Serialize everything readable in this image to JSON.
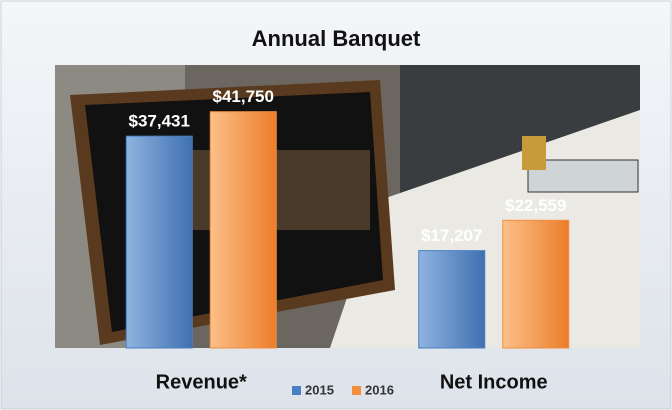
{
  "chart_data": {
    "type": "bar",
    "title": "Annual Banquet",
    "categories": [
      "Revenue*",
      "Net Income"
    ],
    "series": [
      {
        "name": "2015",
        "color": "#4a7fc1",
        "values": [
          37431,
          17207
        ],
        "value_labels": [
          "$37,431",
          "$17,207"
        ]
      },
      {
        "name": "2016",
        "color": "#f28e3c",
        "values": [
          41750,
          22559
        ],
        "value_labels": [
          "$41,750",
          "$22,559"
        ]
      }
    ],
    "ylim": [
      0,
      50000
    ]
  }
}
